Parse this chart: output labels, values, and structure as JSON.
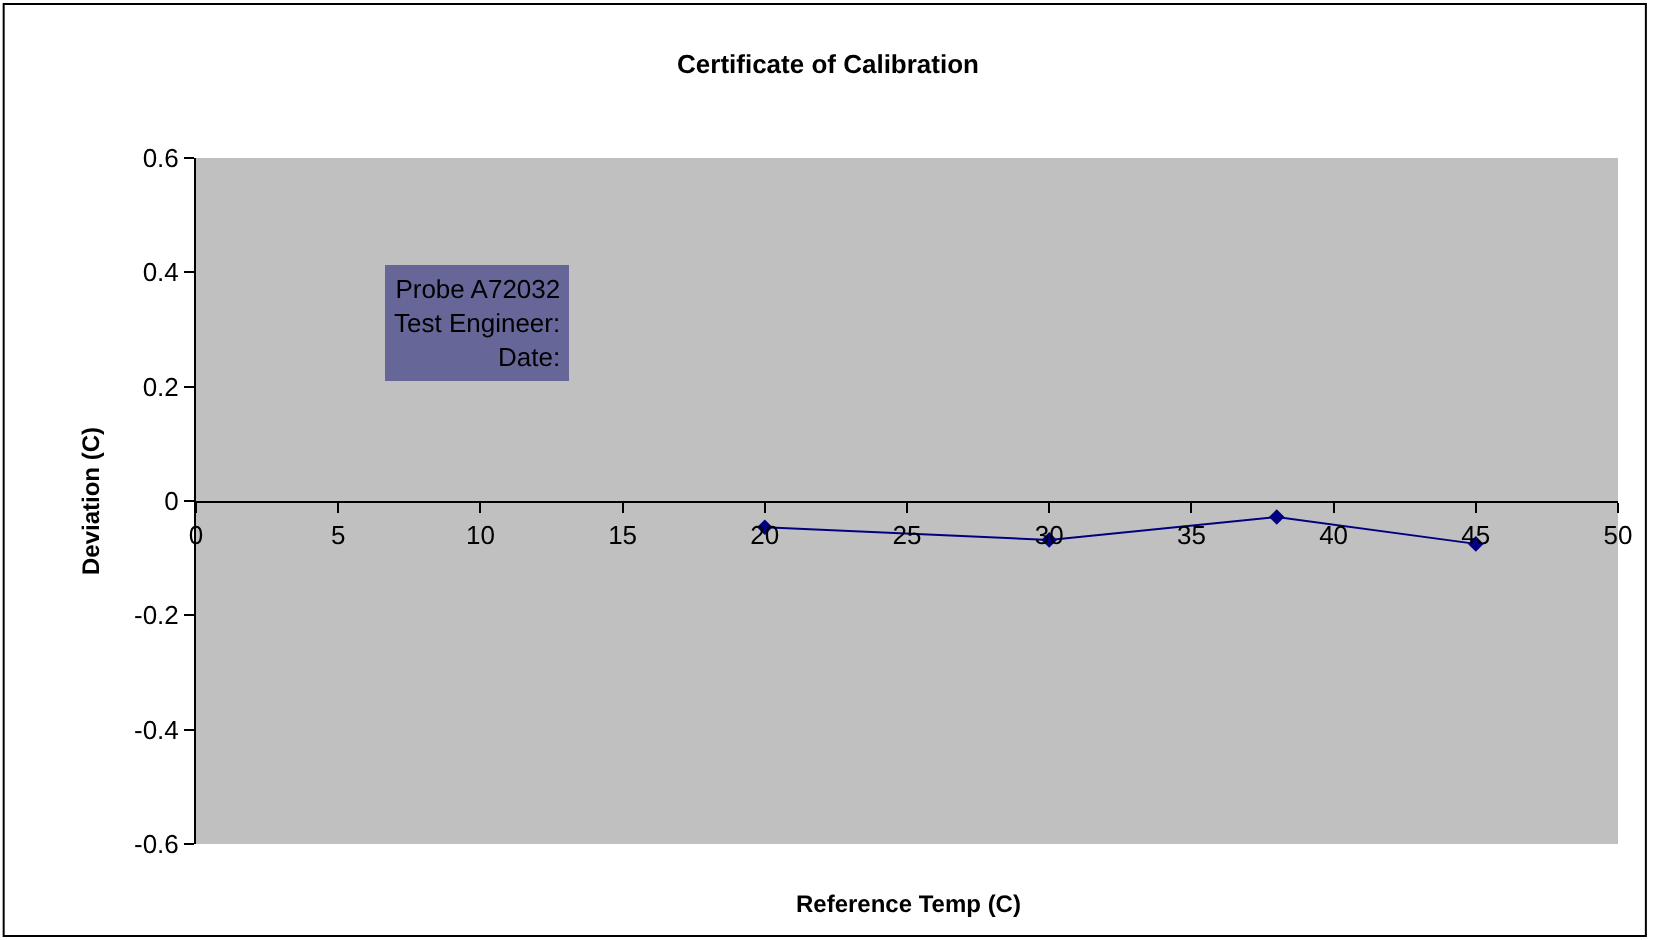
{
  "chart_data": {
    "type": "line",
    "title": "Certificate of Calibration",
    "xlabel": "Reference Temp (C)",
    "ylabel": "Deviation (C)",
    "x": [
      20,
      30,
      38,
      45
    ],
    "series": [
      {
        "color": "#000080",
        "values": [
          -0.046,
          -0.068,
          -0.028,
          -0.075
        ]
      }
    ],
    "xlim": [
      0,
      50
    ],
    "xticks": [
      0,
      5,
      10,
      15,
      20,
      25,
      30,
      35,
      40,
      45,
      50
    ],
    "ylim": [
      -0.6,
      0.6
    ],
    "yticks": [
      -0.6,
      -0.4,
      -0.2,
      0,
      0.2,
      0.4,
      0.6
    ],
    "grid": false,
    "marker": "diamond",
    "line_style": "solid",
    "annotations": [
      "Probe A72032\nTest Engineer:\nDate:"
    ]
  }
}
